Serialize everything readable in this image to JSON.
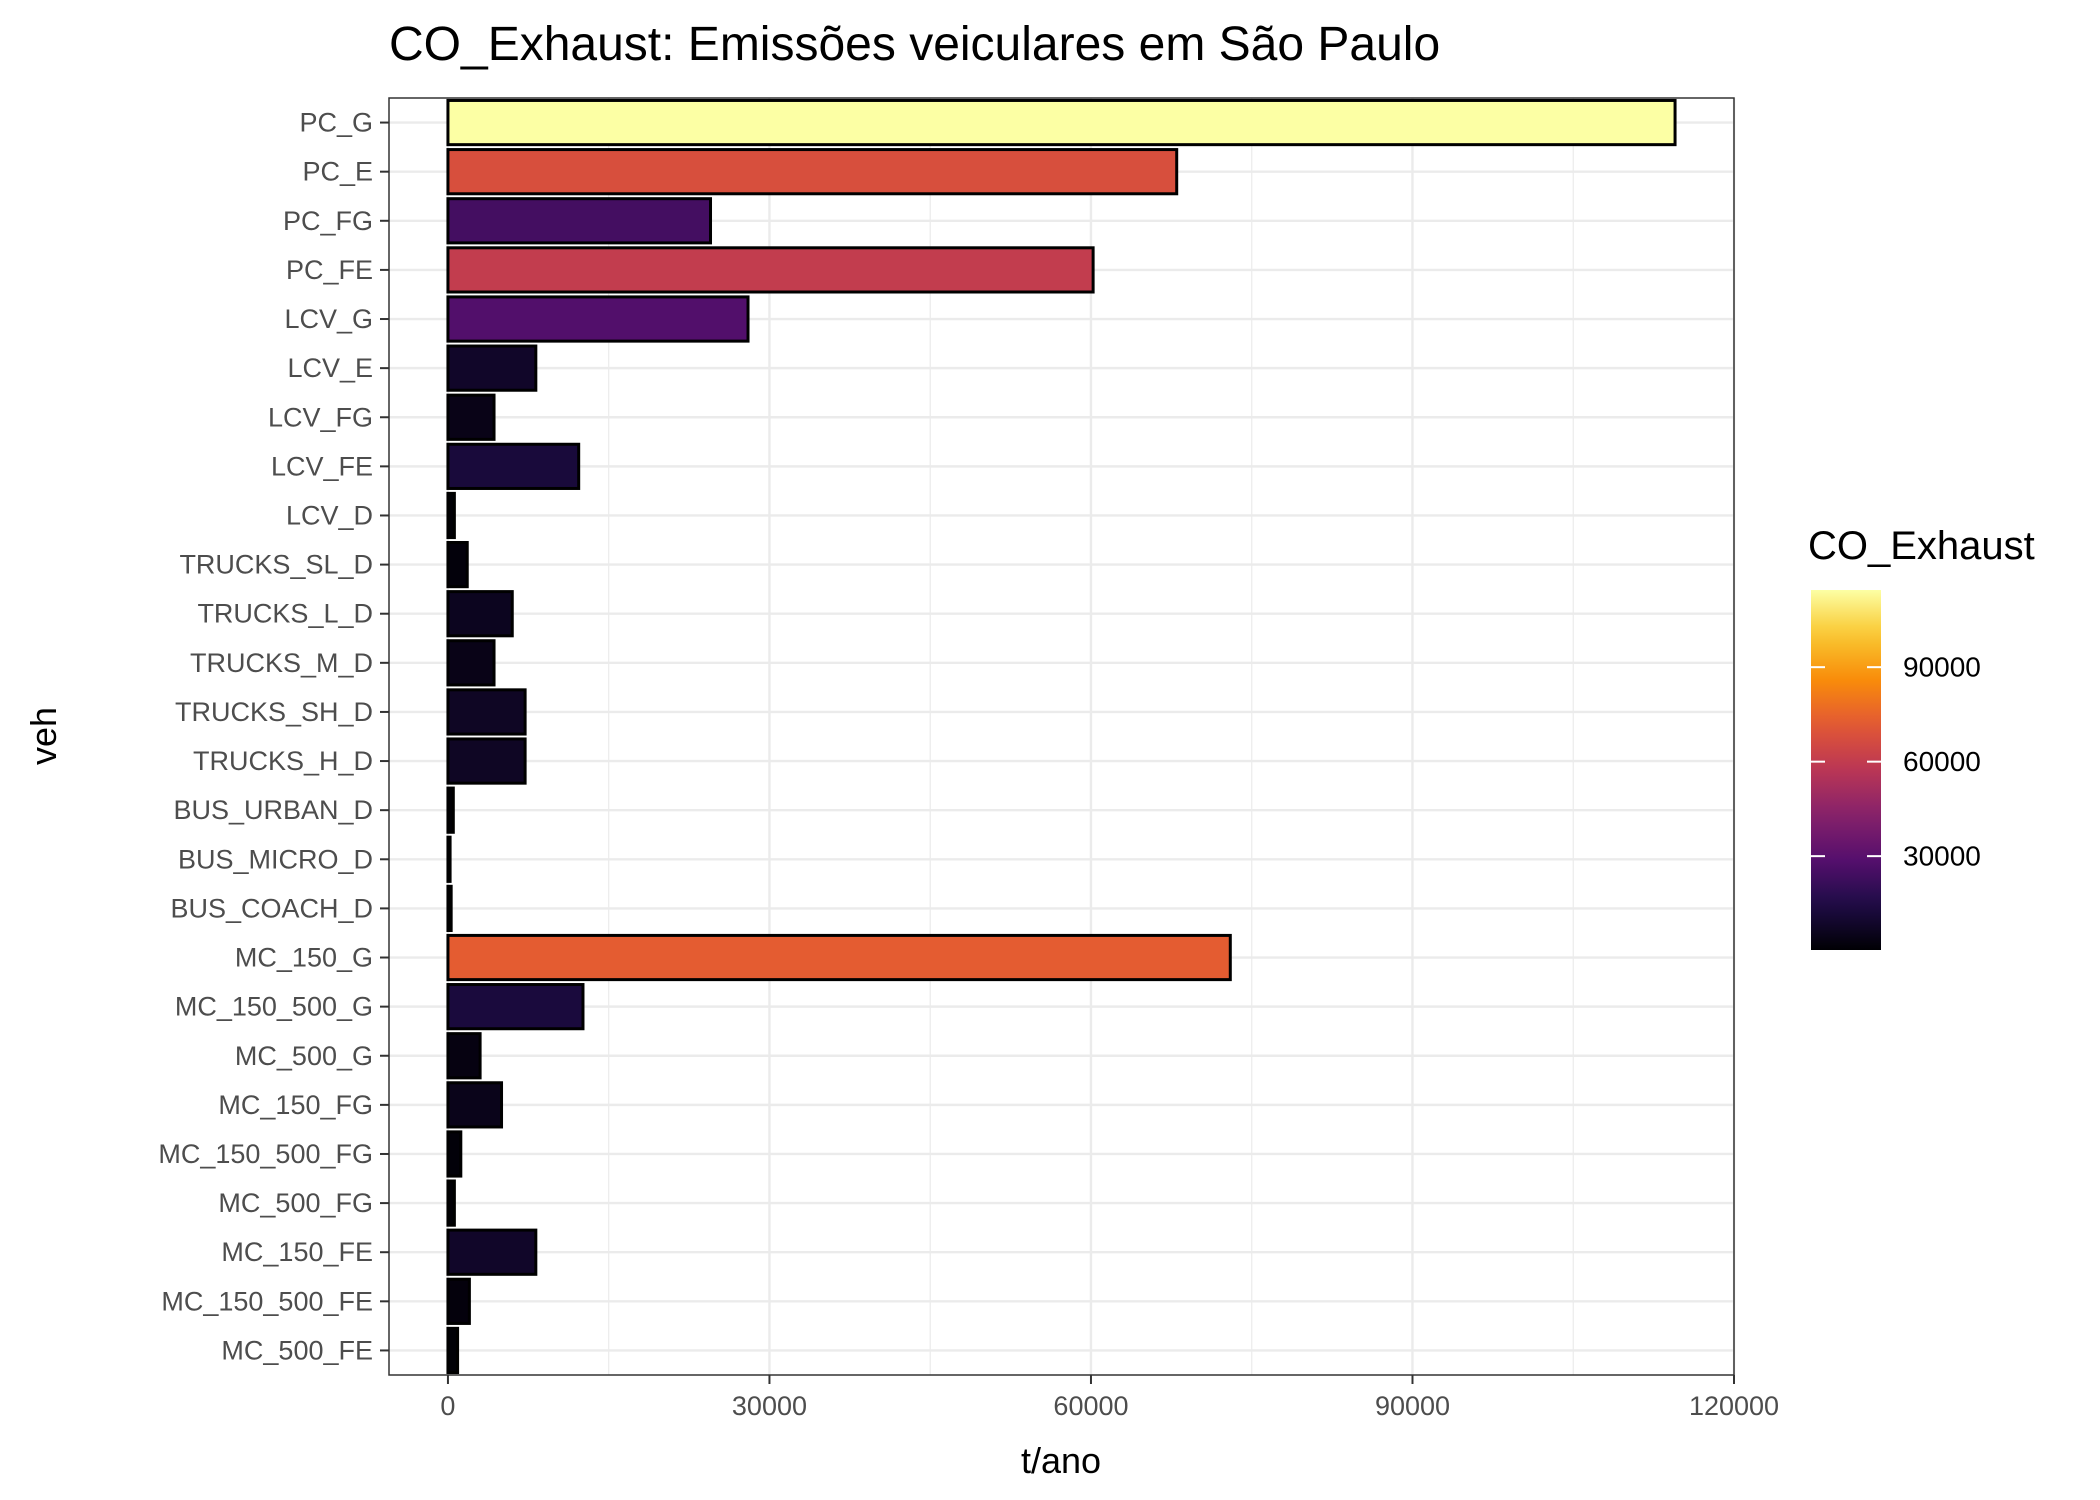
{
  "chart_data": {
    "type": "bar",
    "orientation": "horizontal",
    "title": "CO_Exhaust: Emissões veiculares em São Paulo",
    "xlabel": "t/ano",
    "ylabel": "veh",
    "xlim": [
      -5500,
      120000
    ],
    "x_ticks": [
      0,
      30000,
      60000,
      90000,
      120000
    ],
    "x_tick_labels": [
      "0",
      "30000",
      "60000",
      "90000",
      "120000"
    ],
    "grid": true,
    "categories": [
      "PC_G",
      "PC_E",
      "PC_FG",
      "PC_FE",
      "LCV_G",
      "LCV_E",
      "LCV_FG",
      "LCV_FE",
      "LCV_D",
      "TRUCKS_SL_D",
      "TRUCKS_L_D",
      "TRUCKS_M_D",
      "TRUCKS_SH_D",
      "TRUCKS_H_D",
      "BUS_URBAN_D",
      "BUS_MICRO_D",
      "BUS_COACH_D",
      "MC_150_G",
      "MC_150_500_G",
      "MC_500_G",
      "MC_150_FG",
      "MC_150_500_FG",
      "MC_500_FG",
      "MC_150_FE",
      "MC_150_500_FE",
      "MC_500_FE"
    ],
    "values": [
      114500,
      68000,
      24500,
      60200,
      28000,
      8200,
      4300,
      12200,
      600,
      1800,
      6000,
      4300,
      7200,
      7200,
      500,
      200,
      300,
      73000,
      12600,
      3000,
      5000,
      1200,
      600,
      8200,
      2000,
      900
    ],
    "legend": {
      "title": "CO_Exhaust",
      "position": "right",
      "colormap": "inferno",
      "ticks": [
        30000,
        60000,
        90000
      ],
      "tick_labels": [
        "30000",
        "60000",
        "90000"
      ]
    }
  }
}
